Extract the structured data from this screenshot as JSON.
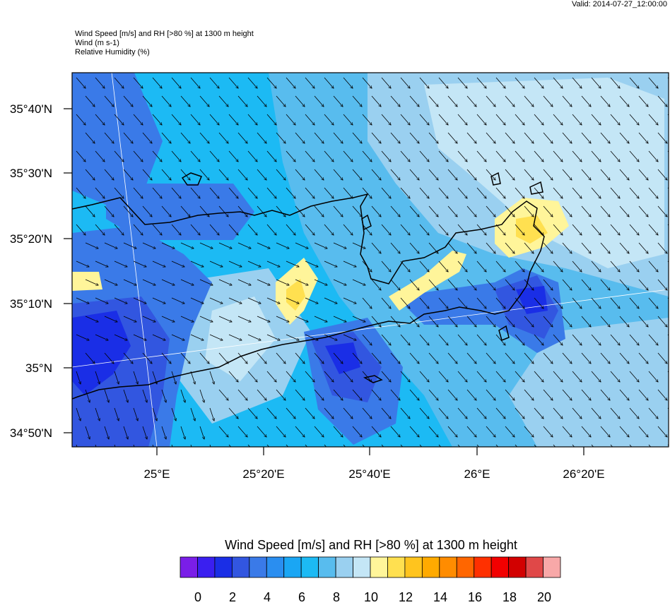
{
  "header": {
    "valid": "Valid: 2014-07-27_12:00:00",
    "title_line1": "Wind Speed [m/s] and RH [>80 %] at 1300 m height",
    "title_line2": "Wind   (m s-1)",
    "title_line3": "Relative Humidity   (%)"
  },
  "map": {
    "lat_labels": [
      "35°40'N",
      "35°30'N",
      "35°20'N",
      "35°10'N",
      "35°N",
      "34°50'N"
    ],
    "lon_labels": [
      "25°E",
      "25°20'E",
      "25°40'E",
      "26°E",
      "26°20'E"
    ]
  },
  "colorbar": {
    "title": "Wind Speed [m/s] and RH [>80 %] at 1300 m height",
    "labels": [
      "0",
      "2",
      "4",
      "6",
      "8",
      "10",
      "12",
      "14",
      "16",
      "18",
      "20"
    ],
    "colors": [
      "#7a1ee8",
      "#3a1ff0",
      "#1a2ee6",
      "#3256e0",
      "#3a7ae8",
      "#2a8ef0",
      "#1aa6f4",
      "#1cbaf4",
      "#58bcee",
      "#9ad0f0",
      "#c4e6f6",
      "#fff59a",
      "#ffe050",
      "#ffc41e",
      "#ffaa00",
      "#ff8c00",
      "#ff6600",
      "#ff3000",
      "#f20000",
      "#d20000",
      "#e04848",
      "#f8a8a8"
    ]
  }
}
